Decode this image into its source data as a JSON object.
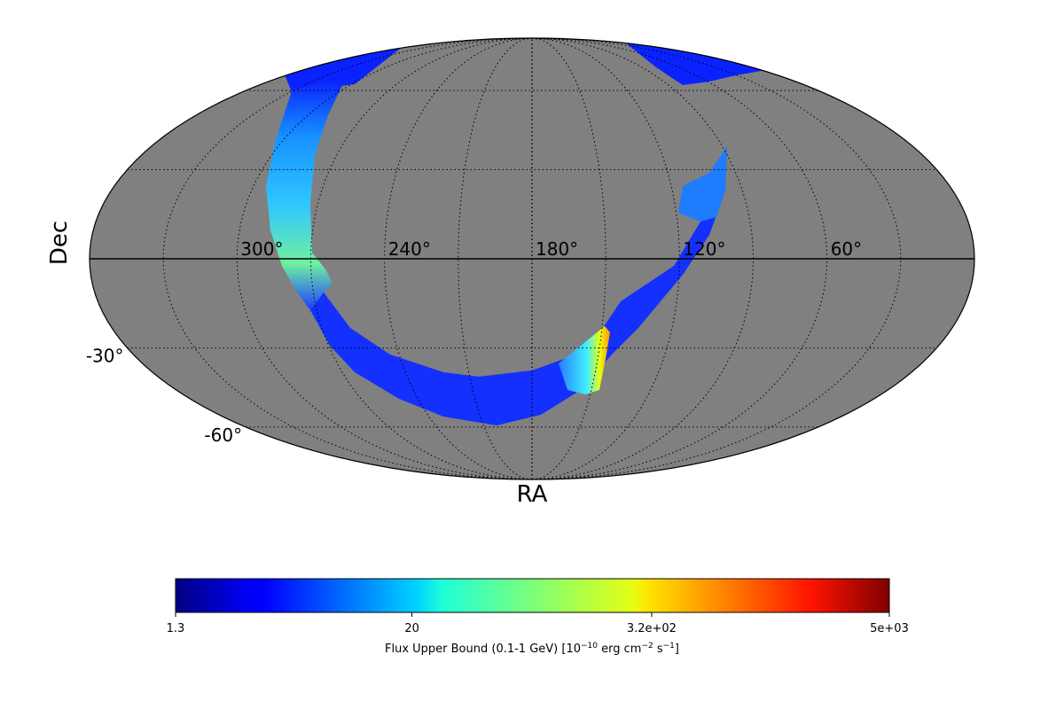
{
  "chart_data": {
    "type": "heatmap",
    "projection": "mollweide",
    "background_color": "#808080",
    "grid": true,
    "xlabel": "RA",
    "ylabel": "Dec",
    "ra_ticks": [
      {
        "value": 300,
        "label": "300°"
      },
      {
        "value": 240,
        "label": "240°"
      },
      {
        "value": 180,
        "label": "180°"
      },
      {
        "value": 120,
        "label": "120°"
      },
      {
        "value": 60,
        "label": "60°"
      }
    ],
    "dec_ticks": [
      {
        "value": -30,
        "label": "-30°"
      },
      {
        "value": -60,
        "label": "-60°"
      }
    ],
    "ra_range": [
      0,
      360
    ],
    "ra_direction": "decreasing-right",
    "dec_range": [
      -90,
      90
    ],
    "coverage_band_ra_dec": [
      [
        285,
        85
      ],
      [
        300,
        75
      ],
      [
        310,
        55
      ],
      [
        312,
        25
      ],
      [
        305,
        0
      ],
      [
        290,
        -20
      ],
      [
        265,
        -40
      ],
      [
        240,
        -55
      ],
      [
        210,
        -63
      ],
      [
        180,
        -65
      ],
      [
        155,
        -58
      ],
      [
        140,
        -45
      ],
      [
        125,
        -20
      ],
      [
        115,
        5
      ],
      [
        108,
        35
      ]
    ],
    "coverage_color": "#1a3cff",
    "features": [
      {
        "name": "high-flux-stripe",
        "ra": 150,
        "dec": -42,
        "color": "#e8ff10"
      },
      {
        "name": "green-patch",
        "ra": 300,
        "dec": -10,
        "color": "#9cff50"
      }
    ],
    "colorbar": {
      "label": "Flux Upper Bound (0.1-1 GeV) [10^-10 erg cm^-2 s^-1]",
      "label_prefix": "Flux Upper Bound (0.1-1 GeV) [10",
      "label_exp1": "−10",
      "label_mid": " erg cm",
      "label_exp2": "−2",
      "label_mid2": " s",
      "label_exp3": "−1",
      "label_suffix": "]",
      "scale": "log",
      "min": 1.3,
      "max": 5000,
      "colormap": "jet",
      "ticks": [
        {
          "value": 1.3,
          "label": "1.3"
        },
        {
          "value": 20,
          "label": "20"
        },
        {
          "value": 320,
          "label": "3.2e+02"
        },
        {
          "value": 5000,
          "label": "5e+03"
        }
      ]
    }
  }
}
